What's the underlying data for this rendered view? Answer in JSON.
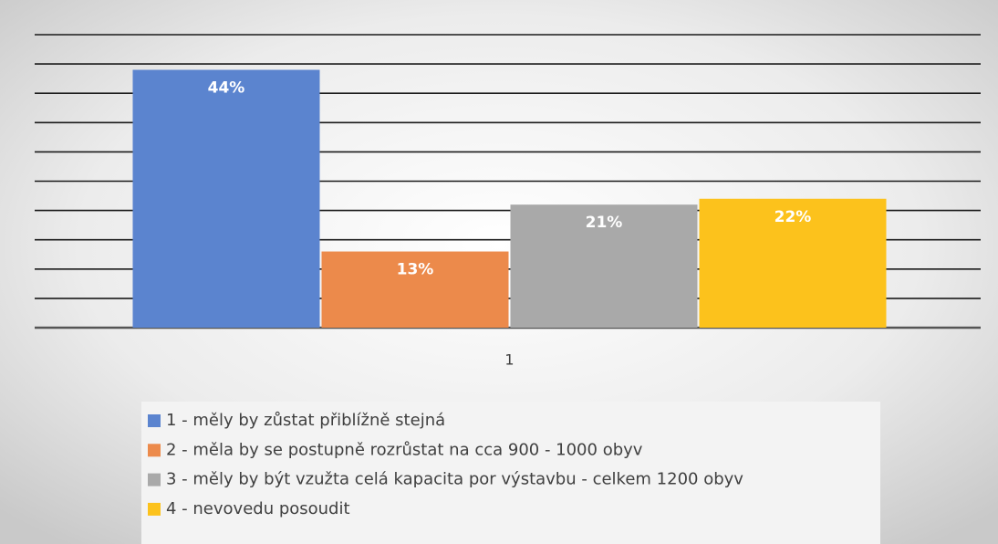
{
  "chart_data": {
    "type": "bar",
    "categories": [
      "1"
    ],
    "series": [
      {
        "name": "1 - měly by zůstat přiblížně stejná",
        "color": "#5b84cf",
        "values": [
          44
        ],
        "value_labels": [
          "44%"
        ]
      },
      {
        "name": "2 - měla by se postupně rozrůstat na cca 900 - 1000 obyv",
        "color": "#ec8a4b",
        "values": [
          13
        ],
        "value_labels": [
          "13%"
        ]
      },
      {
        "name": "3 - měly by být vzužta celá kapacita por výstavbu - celkem 1200 obyv",
        "color": "#a9a9a9",
        "values": [
          21
        ],
        "value_labels": [
          "21%"
        ]
      },
      {
        "name": "4 - nevovedu posoudit",
        "color": "#fcc21c",
        "values": [
          22
        ],
        "value_labels": [
          "22%"
        ]
      }
    ],
    "ylim": [
      0,
      50
    ],
    "yticks": [
      0,
      5,
      10,
      15,
      20,
      25,
      30,
      35,
      40,
      45,
      50
    ],
    "grid": true
  }
}
